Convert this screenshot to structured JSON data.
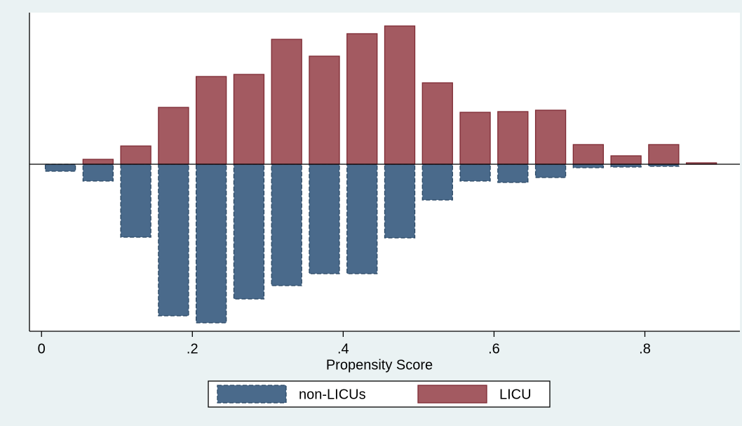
{
  "chart_data": {
    "type": "mirrored-histogram",
    "x_label": "Propensity Score",
    "bins": [
      0,
      0.05,
      0.1,
      0.15,
      0.2,
      0.25,
      0.3,
      0.35,
      0.4,
      0.45,
      0.5,
      0.55,
      0.6,
      0.65,
      0.7,
      0.75,
      0.8,
      0.85,
      0.9
    ],
    "series": [
      {
        "name": "non-LICUs",
        "color": "#4a6a8b",
        "edge": "#2a4864",
        "values": [
          -1.0,
          -2.4,
          -10.4,
          -21.6,
          -22.6,
          -19.2,
          -17.3,
          -15.6,
          -15.6,
          -10.5,
          -5.1,
          -2.4,
          -2.6,
          -1.9,
          -0.5,
          -0.4,
          -0.3,
          0
        ]
      },
      {
        "name": "LICU",
        "color": "#a35a61",
        "edge": "#7e2a33",
        "values": [
          0,
          0.7,
          2.6,
          8.1,
          12.5,
          12.8,
          17.8,
          15.4,
          18.6,
          19.7,
          11.6,
          7.4,
          7.5,
          7.7,
          2.8,
          1.2,
          2.8,
          0.2
        ]
      }
    ],
    "xlim": [
      -0.016,
      0.926
    ],
    "xticks": [
      0,
      {
        "value": 0.2,
        "label": ".2"
      },
      {
        "value": 0.4,
        "label": ".4"
      },
      {
        "value": 0.6,
        "label": ".6"
      },
      {
        "value": 0.8,
        "label": ".8"
      }
    ],
    "ylim": [
      -23.8,
      21.6
    ],
    "yline": 0,
    "legend": "bottom"
  }
}
